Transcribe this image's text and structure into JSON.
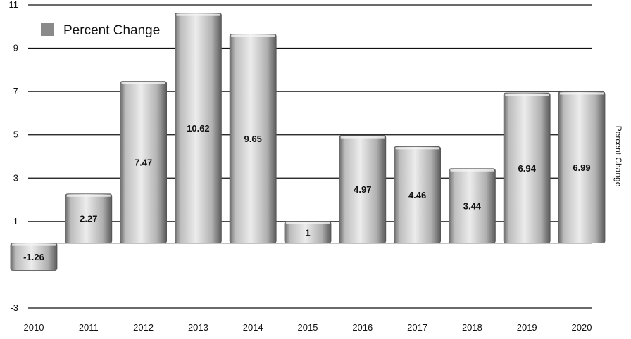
{
  "chart_data": {
    "type": "bar",
    "categories": [
      "2010",
      "2011",
      "2012",
      "2013",
      "2014",
      "2015",
      "2016",
      "2017",
      "2018",
      "2019",
      "2020"
    ],
    "series": [
      {
        "name": "Percent Change",
        "values": [
          -1.26,
          2.27,
          7.47,
          10.62,
          9.65,
          1,
          4.97,
          4.46,
          3.44,
          6.94,
          6.99
        ],
        "labels": [
          "-1.26",
          "2.27",
          "7.47",
          "10.62",
          "9.65",
          "1",
          "4.97",
          "4.46",
          "3.44",
          "6.94",
          "6.99"
        ]
      }
    ],
    "y_ticks": [
      "11",
      "9",
      "7",
      "5",
      "3",
      "1",
      "-3"
    ],
    "ylabel": "Percent Change",
    "ylim": [
      -3,
      11
    ],
    "baseline": 0,
    "grid": true,
    "legend": "top-left",
    "colors": {
      "bar": "#b5b5b5",
      "bar_light": "#e8e8e8",
      "bar_dark": "#5e5e5e",
      "grid": "#111111",
      "legend_swatch": "#8a8a8a"
    }
  }
}
